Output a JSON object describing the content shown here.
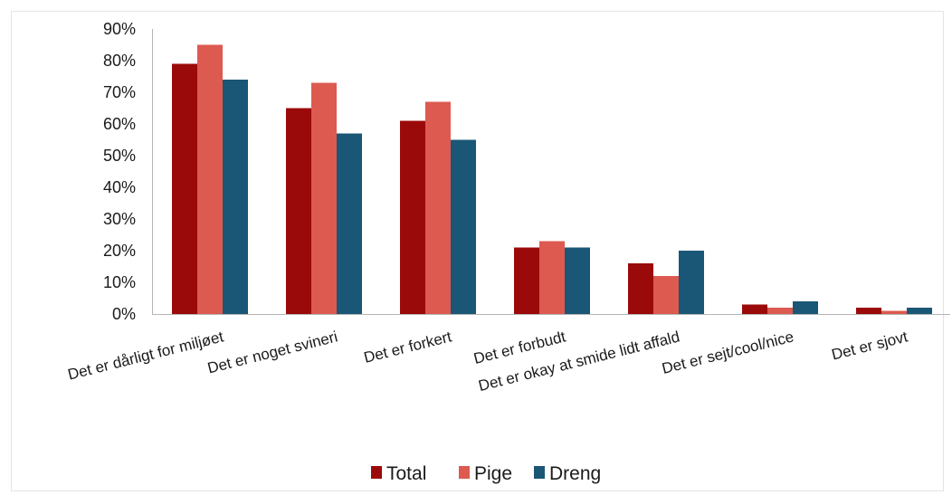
{
  "chart_data": {
    "type": "bar",
    "title": "",
    "xlabel": "",
    "ylabel": "",
    "ylim": [
      0,
      90
    ],
    "y_ticks": [
      "0%",
      "10%",
      "20%",
      "30%",
      "40%",
      "50%",
      "60%",
      "70%",
      "80%",
      "90%"
    ],
    "grid": false,
    "legend_position": "bottom",
    "categories": [
      "Det er dårligt for miljøet",
      "Det er noget svineri",
      "Det er forkert",
      "Det er forbudt",
      "Det er okay at smide lidt affald",
      "Det er sejt/cool/nice",
      "Det er sjovt"
    ],
    "series": [
      {
        "name": "Total",
        "color": "#9b0a0a",
        "values": [
          79,
          65,
          61,
          21,
          16,
          3,
          2
        ]
      },
      {
        "name": "Pige",
        "color": "#dc5a50",
        "values": [
          85,
          73,
          67,
          23,
          12,
          2,
          1
        ]
      },
      {
        "name": "Dreng",
        "color": "#1a5676",
        "values": [
          74,
          57,
          55,
          21,
          20,
          4,
          2
        ]
      }
    ]
  }
}
